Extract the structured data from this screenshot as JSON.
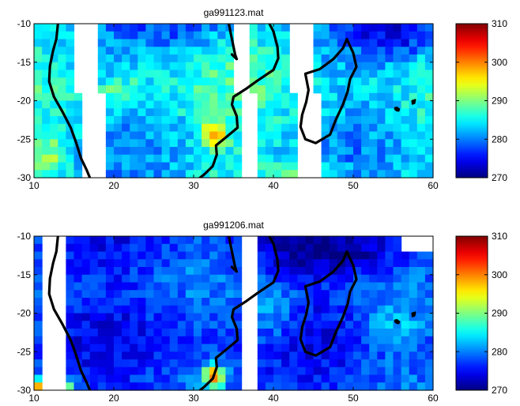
{
  "chart_data": [
    {
      "type": "heatmap",
      "title": "ga991123.mat",
      "xlabel": "",
      "ylabel": "",
      "xlim": [
        10,
        60
      ],
      "ylim": [
        -30,
        -10
      ],
      "xticks": [
        "10",
        "20",
        "30",
        "40",
        "50",
        "60"
      ],
      "yticks": [
        "-10",
        "-15",
        "-20",
        "-25",
        "-30"
      ],
      "colorbar": {
        "min": 270,
        "max": 310,
        "ticks": [
          "310",
          "300",
          "290",
          "280",
          "270"
        ],
        "colormap": "jet"
      },
      "grid_shape": [
        20,
        50
      ],
      "cell_size_deg": 1,
      "values_summary": "mostly 280-292 K; warmer (295-305 K) patches near 32E,-25 and along the southern edge near 40-47E; cooler (272-278 K) toward the north-east",
      "missing_columns_deg": [
        [
          15,
          18
        ],
        [
          35,
          37
        ],
        [
          42,
          45
        ]
      ],
      "overlay": "coastline"
    },
    {
      "type": "heatmap",
      "title": "ga991206.mat",
      "xlabel": "",
      "ylabel": "",
      "xlim": [
        10,
        60
      ],
      "ylim": [
        -30,
        -10
      ],
      "xticks": [
        "10",
        "20",
        "30",
        "40",
        "50",
        "60"
      ],
      "yticks": [
        "-10",
        "-15",
        "-20",
        "-25",
        "-30"
      ],
      "colorbar": {
        "min": 270,
        "max": 310,
        "ticks": [
          "310",
          "300",
          "290",
          "280",
          "270"
        ],
        "colormap": "jet"
      },
      "grid_shape": [
        20,
        50
      ],
      "cell_size_deg": 1,
      "values_summary": "mostly 272-282 K; very cold (~270 K) block in the north-east; warm (300-308 K) strip at the southern edge near 10-14E and a warm patch near 32E,-28",
      "missing_columns_deg": [
        [
          11,
          14
        ],
        [
          36,
          38
        ]
      ],
      "overlay": "coastline"
    }
  ]
}
